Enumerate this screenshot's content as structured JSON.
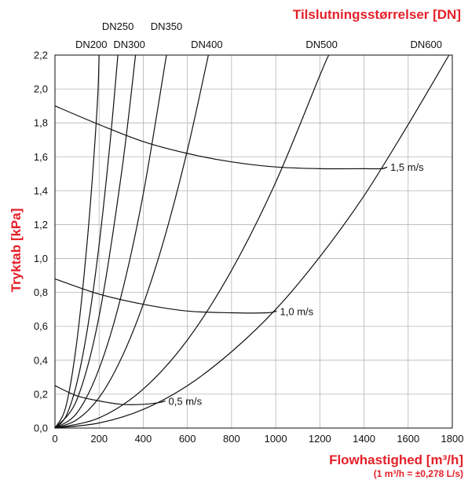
{
  "chart_data": {
    "type": "line",
    "title": "Tilslutningsstørrelser [DN]",
    "xlabel": "Flowhastighed [m³/h]",
    "xlabel_note": "(1 m³/h = ±0,278 L/s)",
    "ylabel": "Tryktab [kPa]",
    "xlim": [
      0,
      1800
    ],
    "ylim": [
      0,
      2.2
    ],
    "x_ticks": [
      "0",
      "200",
      "400",
      "600",
      "800",
      "1000",
      "1200",
      "1400",
      "1600",
      "1800"
    ],
    "y_ticks": [
      "0,0",
      "0,2",
      "0,4",
      "0,6",
      "0,8",
      "1,0",
      "1,2",
      "1,4",
      "1,6",
      "1,8",
      "2,0",
      "2,2"
    ],
    "grid": true,
    "top_labels_row1": [
      "DN250",
      "DN350"
    ],
    "top_labels_row2": [
      "DN200",
      "DN300",
      "DN400",
      "DN500",
      "DN600"
    ],
    "series": [
      {
        "name": "DN200",
        "x": [
          0,
          50,
          100,
          150,
          190,
          200
        ],
        "y": [
          0,
          0.13,
          0.52,
          1.16,
          1.87,
          2.2
        ]
      },
      {
        "name": "DN250",
        "x": [
          0,
          50,
          100,
          150,
          200,
          250,
          285
        ],
        "y": [
          0,
          0.07,
          0.27,
          0.61,
          1.08,
          1.69,
          2.2
        ]
      },
      {
        "name": "DN300",
        "x": [
          0,
          100,
          200,
          300,
          365
        ],
        "y": [
          0,
          0.17,
          0.66,
          1.49,
          2.2
        ]
      },
      {
        "name": "DN350",
        "x": [
          0,
          100,
          200,
          300,
          400,
          505
        ],
        "y": [
          0,
          0.09,
          0.35,
          0.78,
          1.38,
          2.2
        ]
      },
      {
        "name": "DN400",
        "x": [
          0,
          100,
          200,
          300,
          400,
          500,
          600,
          695
        ],
        "y": [
          0,
          0.05,
          0.18,
          0.41,
          0.73,
          1.14,
          1.64,
          2.2
        ]
      },
      {
        "name": "DN500",
        "x": [
          0,
          200,
          400,
          600,
          800,
          1000,
          1200,
          1240
        ],
        "y": [
          0,
          0.06,
          0.23,
          0.52,
          0.93,
          1.45,
          2.08,
          2.2
        ]
      },
      {
        "name": "DN600",
        "x": [
          0,
          200,
          400,
          600,
          800,
          1000,
          1200,
          1400,
          1600,
          1785
        ],
        "y": [
          0,
          0.03,
          0.11,
          0.25,
          0.45,
          0.7,
          1.01,
          1.37,
          1.79,
          2.2
        ]
      },
      {
        "name": "1,5 m/s",
        "x": [
          0,
          200,
          400,
          600,
          800,
          1000,
          1200,
          1400,
          1480,
          1505
        ],
        "y": [
          1.9,
          1.79,
          1.69,
          1.62,
          1.57,
          1.54,
          1.53,
          1.53,
          1.53,
          1.54
        ]
      },
      {
        "name": "1,0 m/s",
        "x": [
          0,
          200,
          400,
          600,
          800,
          960,
          1005
        ],
        "y": [
          0.88,
          0.79,
          0.73,
          0.69,
          0.68,
          0.68,
          0.69
        ]
      },
      {
        "name": "0,5 m/s",
        "x": [
          0,
          100,
          200,
          300,
          400,
          470,
          500
        ],
        "y": [
          0.25,
          0.19,
          0.16,
          0.14,
          0.14,
          0.15,
          0.16
        ]
      }
    ],
    "velocity_labels": [
      "1,5 m/s",
      "1,0 m/s",
      "0,5 m/s"
    ]
  }
}
